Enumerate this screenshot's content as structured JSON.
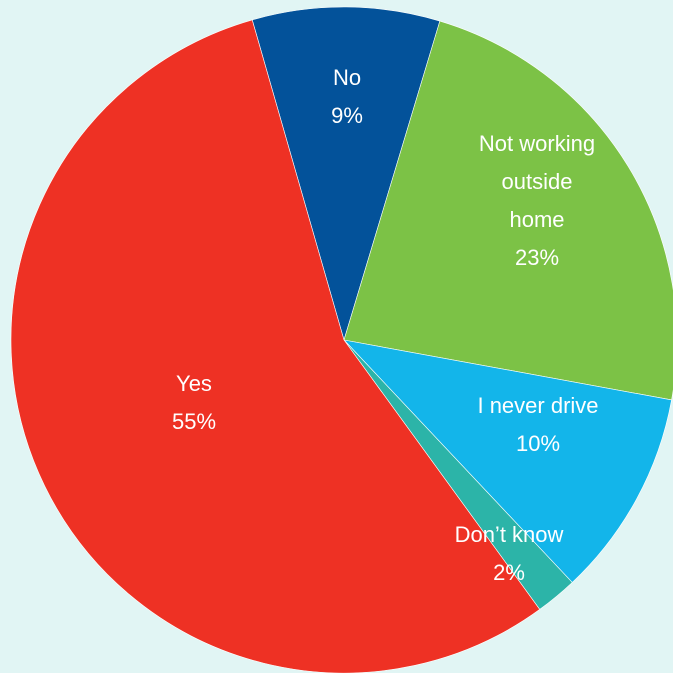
{
  "chart_data": {
    "type": "pie",
    "start_angle_deg": -16,
    "direction": "clockwise",
    "slices": [
      {
        "label": "No",
        "label_lines": [
          "No"
        ],
        "value": 9,
        "value_label": "9%",
        "color": "#03529a"
      },
      {
        "label": "Not working outside home",
        "label_lines": [
          "Not working",
          "outside",
          "home"
        ],
        "value": 23,
        "value_label": "23%",
        "color": "#7cc246"
      },
      {
        "label": "I never drive",
        "label_lines": [
          "I never drive"
        ],
        "value": 10,
        "value_label": "10%",
        "color": "#13b5ea"
      },
      {
        "label": "Don’t know",
        "label_lines": [
          "Don’t know"
        ],
        "value": 2,
        "value_label": "2%",
        "color": "#2cb4a8"
      },
      {
        "label": "Yes",
        "label_lines": [
          "Yes"
        ],
        "value": 55,
        "value_label": "55%",
        "color": "#ee3124"
      }
    ]
  }
}
